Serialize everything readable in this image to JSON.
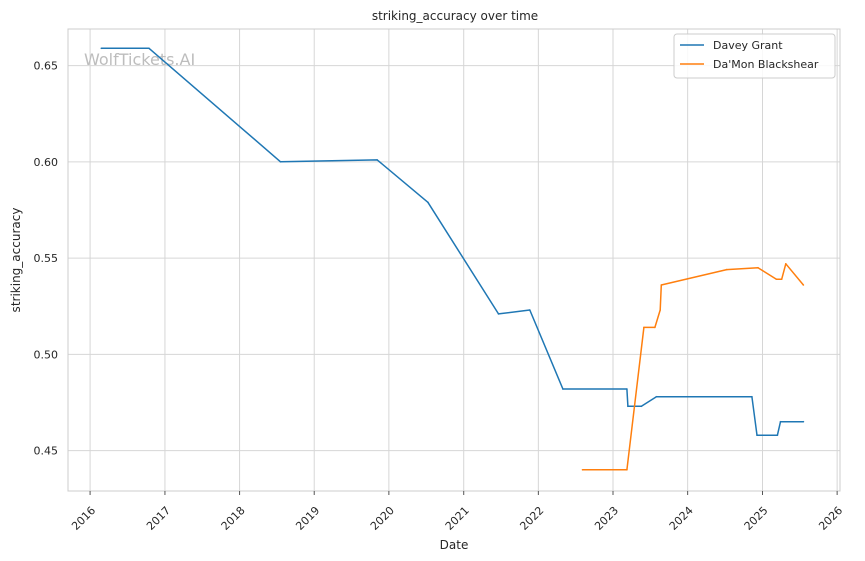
{
  "chart_data": {
    "type": "line",
    "title": "striking_accuracy over time",
    "xlabel": "Date",
    "ylabel": "striking_accuracy",
    "watermark": "WolfTickets.AI",
    "x_ticks": [
      "2016",
      "2017",
      "2018",
      "2019",
      "2020",
      "2021",
      "2022",
      "2023",
      "2024",
      "2025",
      "2026"
    ],
    "y_ticks": [
      "0.45",
      "0.50",
      "0.55",
      "0.60",
      "0.65"
    ],
    "xlim": [
      "2015-09-15",
      "2026-01-15"
    ],
    "ylim": [
      0.429,
      0.669
    ],
    "grid": true,
    "legend_position": "top-right",
    "series": [
      {
        "name": "Davey Grant",
        "color": "#1f77b4",
        "points": [
          [
            "2016-02-25",
            0.659
          ],
          [
            "2016-10-15",
            0.659
          ],
          [
            "2018-07-20",
            0.6
          ],
          [
            "2019-11-05",
            0.601
          ],
          [
            "2020-07-10",
            0.579
          ],
          [
            "2021-06-20",
            0.521
          ],
          [
            "2021-11-20",
            0.523
          ],
          [
            "2022-05-01",
            0.482
          ],
          [
            "2023-03-10",
            0.482
          ],
          [
            "2023-03-15",
            0.473
          ],
          [
            "2023-05-20",
            0.473
          ],
          [
            "2023-08-01",
            0.478
          ],
          [
            "2024-11-10",
            0.478
          ],
          [
            "2024-12-05",
            0.458
          ],
          [
            "2025-03-15",
            0.458
          ],
          [
            "2025-03-30",
            0.465
          ],
          [
            "2025-07-20",
            0.465
          ]
        ]
      },
      {
        "name": "Da'Mon Blackshear",
        "color": "#ff7f0e",
        "points": [
          [
            "2022-08-05",
            0.44
          ],
          [
            "2023-03-10",
            0.44
          ],
          [
            "2023-06-01",
            0.514
          ],
          [
            "2023-07-25",
            0.514
          ],
          [
            "2023-08-20",
            0.523
          ],
          [
            "2023-08-25",
            0.536
          ],
          [
            "2024-07-10",
            0.544
          ],
          [
            "2024-12-10",
            0.545
          ],
          [
            "2025-03-10",
            0.539
          ],
          [
            "2025-04-05",
            0.539
          ],
          [
            "2025-04-25",
            0.547
          ],
          [
            "2025-07-20",
            0.536
          ]
        ]
      }
    ]
  }
}
